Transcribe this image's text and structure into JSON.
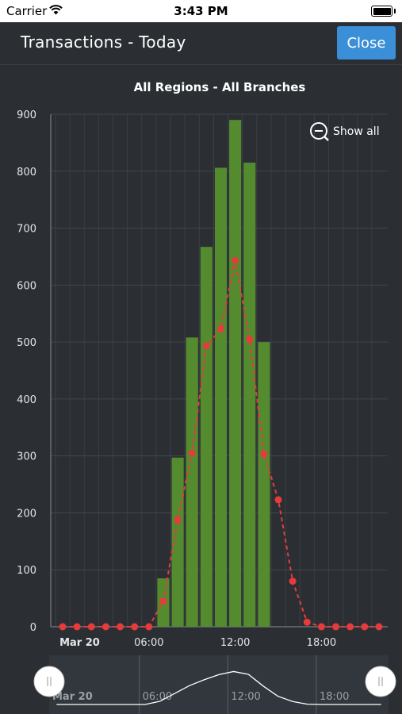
{
  "status": {
    "carrier": "Carrier",
    "time": "3:43 PM"
  },
  "header": {
    "title": "Transactions - Today",
    "close_label": "Close"
  },
  "colors": {
    "bar": "#558b2f",
    "line": "#e53b3b",
    "background": "#2b2f34",
    "button": "#3a8fd8"
  },
  "chart_data": {
    "type": "bar",
    "title": "All Regions - All Branches",
    "show_all_label": "Show all",
    "x_tick_labels": [
      "Mar 20",
      "06:00",
      "12:00",
      "18:00"
    ],
    "ylim": [
      0,
      900
    ],
    "y_ticks": [
      0,
      100,
      200,
      300,
      400,
      500,
      600,
      700,
      800,
      900
    ],
    "hours": [
      0,
      1,
      2,
      3,
      4,
      5,
      6,
      7,
      8,
      9,
      10,
      11,
      12,
      13,
      14,
      15,
      16,
      17,
      18,
      19,
      20,
      21,
      22
    ],
    "bars": [
      0,
      0,
      0,
      0,
      0,
      0,
      0,
      85,
      297,
      508,
      667,
      806,
      890,
      815,
      500,
      0,
      0,
      0,
      0,
      0,
      0,
      0,
      0
    ],
    "line": [
      0,
      0,
      0,
      0,
      0,
      0,
      0,
      45,
      188,
      305,
      493,
      523,
      643,
      505,
      303,
      223,
      80,
      8,
      0,
      0,
      0,
      0,
      0
    ],
    "grid": true
  },
  "navigator": {
    "labels": [
      "Mar 20",
      "06:00",
      "12:00",
      "18:00"
    ]
  }
}
